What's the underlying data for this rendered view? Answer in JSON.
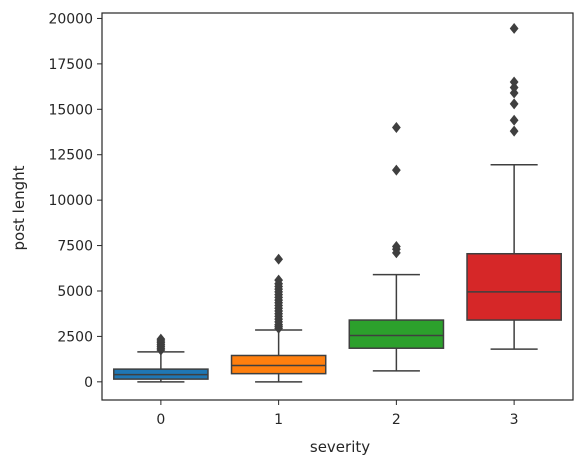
{
  "chart_data": {
    "type": "box",
    "title": "",
    "xlabel": "severity",
    "ylabel": "post lenght",
    "ylim": [
      -1000,
      20300
    ],
    "yticks": [
      0,
      2500,
      5000,
      7500,
      10000,
      12500,
      15000,
      17500,
      20000
    ],
    "grid": false,
    "categories": [
      "0",
      "1",
      "2",
      "3"
    ],
    "boxes": [
      {
        "category": "0",
        "color": "#1f77b4",
        "whisker_low": 0,
        "q1": 150,
        "median": 400,
        "q3": 700,
        "whisker_high": 1650,
        "outliers": [
          1750,
          1850,
          1950,
          2050,
          2150,
          2250,
          2350
        ]
      },
      {
        "category": "1",
        "color": "#ff7f0e",
        "whisker_low": 0,
        "q1": 450,
        "median": 900,
        "q3": 1450,
        "whisker_high": 2850,
        "outliers": [
          2950,
          3050,
          3150,
          3300,
          3450,
          3600,
          3750,
          3900,
          4050,
          4200,
          4350,
          4500,
          4650,
          4800,
          4950,
          5100,
          5250,
          5400,
          5600,
          6750
        ]
      },
      {
        "category": "2",
        "color": "#2ca02c",
        "whisker_low": 600,
        "q1": 1850,
        "median": 2550,
        "q3": 3400,
        "whisker_high": 5900,
        "outliers": [
          7100,
          7300,
          7450,
          11650,
          14000
        ]
      },
      {
        "category": "3",
        "color": "#d62728",
        "whisker_low": 1800,
        "q1": 3400,
        "median": 4950,
        "q3": 7050,
        "whisker_high": 11950,
        "outliers": [
          13800,
          14400,
          15300,
          15900,
          16200,
          16500,
          19450
        ]
      }
    ]
  }
}
